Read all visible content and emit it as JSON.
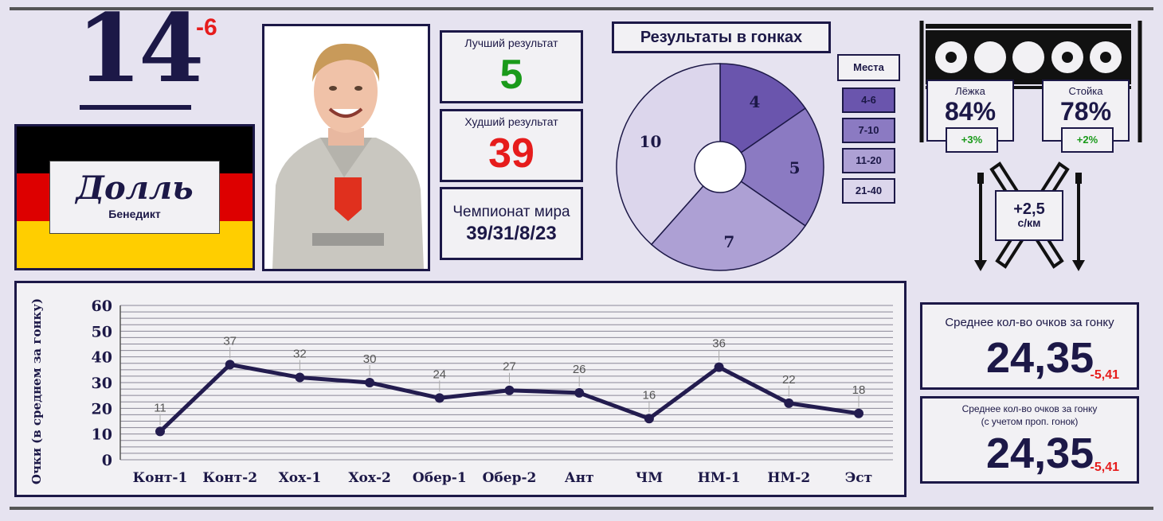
{
  "athlete": {
    "rank": "14",
    "rank_change": "-6",
    "surname": "Долль",
    "first_name": "Бенедикт",
    "flag_colors": [
      "#000000",
      "#dd0000",
      "#ffce00"
    ]
  },
  "stats": {
    "best_label": "Лучший результат",
    "best_value": "5",
    "best_color": "#1a9a1a",
    "worst_label": "Худший результат",
    "worst_value": "39",
    "worst_color": "#e61c1c",
    "wc_label": "Чемпионат мира",
    "wc_value": "39/31/8/23"
  },
  "race_results": {
    "title": "Результаты в гонках",
    "legend_title": "Места",
    "slices": [
      {
        "label": "4-6",
        "value": 4,
        "color": "#6a55ad"
      },
      {
        "label": "7-10",
        "value": 5,
        "color": "#8b7ac2"
      },
      {
        "label": "11-20",
        "value": 7,
        "color": "#ada0d4"
      },
      {
        "label": "21-40",
        "value": 10,
        "color": "#dcd6ec"
      }
    ]
  },
  "shooting": {
    "prone_label": "Лёжка",
    "prone_value": "84%",
    "prone_change": "+3%",
    "standing_label": "Стойка",
    "standing_value": "78%",
    "standing_change": "+2%",
    "ski_speed_value": "+2,5",
    "ski_speed_unit": "с/км",
    "icons": [
      "shooting-target-icon",
      "skis-icon"
    ]
  },
  "chart_data": {
    "type": "line",
    "ylabel": "Очки (в среднем за гонку)",
    "xlabel": "",
    "title": "",
    "categories": [
      "Конт-1",
      "Конт-2",
      "Хох-1",
      "Хох-2",
      "Обер-1",
      "Обер-2",
      "Ант",
      "ЧМ",
      "НМ-1",
      "НМ-2",
      "Эст"
    ],
    "series": [
      {
        "values": [
          11,
          37,
          32,
          30,
          24,
          27,
          26,
          16,
          36,
          22,
          18
        ]
      }
    ],
    "ylim": [
      0,
      60
    ],
    "yticks": [
      0,
      10,
      20,
      30,
      40,
      50,
      60
    ],
    "grid": true,
    "line_color": "#231c4f"
  },
  "averages": {
    "avg_label": "Среднее кол-во очков за гонку",
    "avg_value": "24,35",
    "avg_change": "-5,41",
    "avg_adj_label_line1": "Среднее кол-во очков за гонку",
    "avg_adj_label_line2": "(с учетом проп. гонок)",
    "avg_adj_value": "24,35",
    "avg_adj_change": "-5,41"
  }
}
